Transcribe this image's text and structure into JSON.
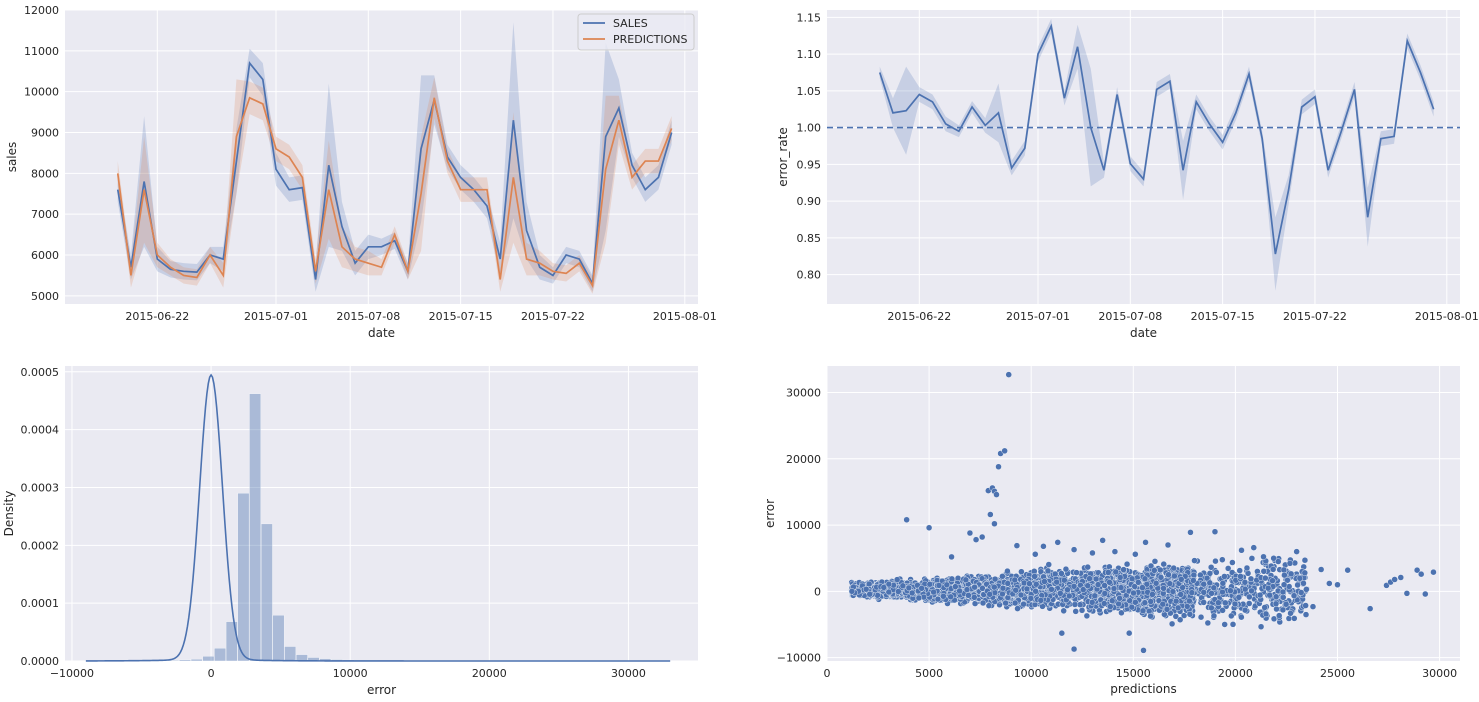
{
  "chart_data": [
    {
      "type": "line",
      "xlabel": "date",
      "ylabel": "sales",
      "ylim": [
        4800,
        12000
      ],
      "yticks": [
        5000,
        6000,
        7000,
        8000,
        9000,
        10000,
        11000,
        12000
      ],
      "xticks": [
        "2015-06-22",
        "2015-07-01",
        "2015-07-08",
        "2015-07-15",
        "2015-07-22",
        "2015-08-01"
      ],
      "x": [
        "2015-06-19",
        "2015-06-20",
        "2015-06-21",
        "2015-06-22",
        "2015-06-23",
        "2015-06-24",
        "2015-06-25",
        "2015-06-26",
        "2015-06-27",
        "2015-06-28",
        "2015-06-29",
        "2015-06-30",
        "2015-07-01",
        "2015-07-02",
        "2015-07-03",
        "2015-07-04",
        "2015-07-05",
        "2015-07-06",
        "2015-07-07",
        "2015-07-08",
        "2015-07-09",
        "2015-07-10",
        "2015-07-11",
        "2015-07-12",
        "2015-07-13",
        "2015-07-14",
        "2015-07-15",
        "2015-07-16",
        "2015-07-17",
        "2015-07-18",
        "2015-07-19",
        "2015-07-20",
        "2015-07-21",
        "2015-07-22",
        "2015-07-23",
        "2015-07-24",
        "2015-07-25",
        "2015-07-26",
        "2015-07-27",
        "2015-07-28",
        "2015-07-29",
        "2015-07-30",
        "2015-07-31"
      ],
      "legend_position": "top-right",
      "grid": true,
      "series": [
        {
          "name": "SALES",
          "color": "#4c72b0",
          "values": [
            7600,
            5700,
            7800,
            5900,
            5650,
            5600,
            5580,
            6000,
            5900,
            8300,
            10700,
            10300,
            8100,
            7600,
            7650,
            5400,
            8200,
            6700,
            5800,
            6200,
            6200,
            6350,
            5600,
            8600,
            9800,
            8400,
            7900,
            7600,
            7200,
            5900,
            9300,
            6600,
            5700,
            5500,
            6000,
            5900,
            5300,
            8900,
            9600,
            8200,
            7600,
            7900,
            9000
          ],
          "band_half_width": [
            300,
            300,
            1600,
            300,
            200,
            200,
            200,
            200,
            300,
            800,
            350,
            400,
            400,
            300,
            300,
            300,
            2000,
            600,
            300,
            300,
            200,
            200,
            200,
            1800,
            600,
            300,
            300,
            300,
            300,
            400,
            2400,
            700,
            300,
            200,
            200,
            200,
            200,
            2300,
            700,
            300,
            300,
            300,
            300
          ]
        },
        {
          "name": "PREDICTIONS",
          "color": "#dd8452",
          "values": [
            8000,
            5500,
            7600,
            6000,
            5700,
            5500,
            5450,
            6000,
            5500,
            8900,
            9850,
            9700,
            8600,
            8400,
            7900,
            5600,
            7600,
            6200,
            5900,
            5800,
            5700,
            6500,
            5600,
            7500,
            9850,
            8300,
            7600,
            7600,
            7600,
            5400,
            7900,
            5900,
            5800,
            5600,
            5550,
            5800,
            5250,
            8100,
            9300,
            7900,
            8300,
            8300,
            9100
          ],
          "band_half_width": [
            300,
            300,
            1300,
            300,
            200,
            200,
            200,
            200,
            300,
            1400,
            400,
            400,
            300,
            300,
            300,
            300,
            1200,
            500,
            300,
            300,
            200,
            200,
            200,
            1400,
            500,
            300,
            300,
            300,
            300,
            300,
            1600,
            400,
            300,
            200,
            200,
            200,
            200,
            1800,
            600,
            300,
            300,
            300,
            300
          ]
        }
      ]
    },
    {
      "type": "line",
      "xlabel": "date",
      "ylabel": "error_rate",
      "ylim": [
        0.76,
        1.16
      ],
      "yticks": [
        0.8,
        0.85,
        0.9,
        0.95,
        1.0,
        1.05,
        1.1,
        1.15
      ],
      "xticks": [
        "2015-06-22",
        "2015-07-01",
        "2015-07-08",
        "2015-07-15",
        "2015-07-22",
        "2015-08-01"
      ],
      "x": [
        "2015-06-19",
        "2015-06-20",
        "2015-06-21",
        "2015-06-22",
        "2015-06-23",
        "2015-06-24",
        "2015-06-25",
        "2015-06-26",
        "2015-06-27",
        "2015-06-28",
        "2015-06-29",
        "2015-06-30",
        "2015-07-01",
        "2015-07-02",
        "2015-07-03",
        "2015-07-04",
        "2015-07-05",
        "2015-07-06",
        "2015-07-07",
        "2015-07-08",
        "2015-07-09",
        "2015-07-10",
        "2015-07-11",
        "2015-07-12",
        "2015-07-13",
        "2015-07-14",
        "2015-07-15",
        "2015-07-16",
        "2015-07-17",
        "2015-07-18",
        "2015-07-19",
        "2015-07-20",
        "2015-07-21",
        "2015-07-22",
        "2015-07-23",
        "2015-07-24",
        "2015-07-25",
        "2015-07-26",
        "2015-07-27",
        "2015-07-28",
        "2015-07-29",
        "2015-07-30",
        "2015-07-31"
      ],
      "reference_line": 1.0,
      "grid": true,
      "series": [
        {
          "color": "#4c72b0",
          "values": [
            1.075,
            1.02,
            1.023,
            1.045,
            1.035,
            1.005,
            0.995,
            1.028,
            1.003,
            1.02,
            0.945,
            0.972,
            1.1,
            1.138,
            1.04,
            1.11,
            1.0,
            0.942,
            1.045,
            0.951,
            0.93,
            1.052,
            1.063,
            0.942,
            1.035,
            1.005,
            0.98,
            1.02,
            1.073,
            0.985,
            0.828,
            0.915,
            1.028,
            1.042,
            0.942,
            0.995,
            1.052,
            0.878,
            0.985,
            0.988,
            1.118,
            1.075,
            1.025
          ],
          "band_half_width": [
            0.008,
            0.02,
            0.06,
            0.01,
            0.01,
            0.01,
            0.008,
            0.008,
            0.01,
            0.04,
            0.01,
            0.01,
            0.01,
            0.01,
            0.01,
            0.03,
            0.08,
            0.01,
            0.01,
            0.01,
            0.01,
            0.01,
            0.01,
            0.04,
            0.01,
            0.01,
            0.01,
            0.01,
            0.01,
            0.01,
            0.05,
            0.02,
            0.01,
            0.01,
            0.01,
            0.01,
            0.01,
            0.04,
            0.01,
            0.01,
            0.01,
            0.01,
            0.01
          ]
        }
      ]
    },
    {
      "type": "histogram",
      "xlabel": "error",
      "ylabel": "Density",
      "xlim": [
        -10500,
        35000
      ],
      "ylim": [
        0,
        0.00051
      ],
      "xticks": [
        -10000,
        0,
        10000,
        20000,
        30000
      ],
      "yticks": [
        0.0,
        0.0001,
        0.0002,
        0.0003,
        0.0004,
        0.0005
      ],
      "ytick_labels": [
        "0.0000",
        "0.0001",
        "0.0002",
        "0.0003",
        "0.0004",
        "0.0005"
      ],
      "bin_width": 840,
      "bin_start": -9000,
      "densities": [
        4e-07,
        4e-07,
        4e-07,
        4e-07,
        4e-07,
        6e-07,
        8e-07,
        1.2e-06,
        2e-06,
        3e-06,
        8e-06,
        2.2e-05,
        6.8e-05,
        0.00029,
        0.000462,
        0.000237,
        7.9e-05,
        2.5e-05,
        1.1e-05,
        6e-06,
        4e-06,
        2.5e-06,
        1.8e-06,
        1.2e-06,
        9e-07,
        6e-07,
        5e-07,
        4e-07,
        4e-07,
        4e-07,
        4e-07,
        4e-07,
        4e-07,
        4e-07,
        4e-07,
        4e-07,
        4e-07,
        4e-07,
        4e-07,
        4e-07,
        4e-07,
        4e-07,
        4e-07,
        4e-07,
        4e-07,
        4e-07,
        4e-07,
        4e-07,
        4e-07,
        4e-07
      ],
      "kde_peak": 0.00049,
      "color": "#4c72b0",
      "grid": true
    },
    {
      "type": "scatter",
      "xlabel": "predictions",
      "ylabel": "error",
      "xlim": [
        0,
        31000
      ],
      "ylim": [
        -10500,
        34000
      ],
      "xticks": [
        0,
        5000,
        10000,
        15000,
        20000,
        25000,
        30000
      ],
      "yticks": [
        -10000,
        0,
        10000,
        20000,
        30000
      ],
      "color": "#4c72b0",
      "grid": true,
      "outliers": [
        [
          3900,
          10800
        ],
        [
          5000,
          9600
        ],
        [
          6100,
          5200
        ],
        [
          7000,
          8800
        ],
        [
          7300,
          7800
        ],
        [
          7600,
          8200
        ],
        [
          7900,
          15200
        ],
        [
          8100,
          15600
        ],
        [
          8200,
          15100
        ],
        [
          8300,
          14600
        ],
        [
          8000,
          11600
        ],
        [
          8200,
          10200
        ],
        [
          8400,
          18800
        ],
        [
          8500,
          20800
        ],
        [
          8700,
          21200
        ],
        [
          8900,
          32700
        ],
        [
          9300,
          6900
        ],
        [
          10200,
          5600
        ],
        [
          10600,
          6800
        ],
        [
          11300,
          7400
        ],
        [
          12100,
          6300
        ],
        [
          13000,
          5800
        ],
        [
          13500,
          7700
        ],
        [
          14100,
          6000
        ],
        [
          15100,
          5600
        ],
        [
          15600,
          7400
        ],
        [
          16700,
          7000
        ],
        [
          17800,
          8900
        ],
        [
          19000,
          9000
        ],
        [
          20300,
          6200
        ],
        [
          20900,
          6600
        ],
        [
          22100,
          4500
        ],
        [
          23000,
          6000
        ],
        [
          23400,
          2800
        ],
        [
          24200,
          3300
        ],
        [
          24600,
          1200
        ],
        [
          25000,
          1000
        ],
        [
          25500,
          3200
        ],
        [
          26600,
          -2600
        ],
        [
          27400,
          900
        ],
        [
          27600,
          1400
        ],
        [
          27800,
          1800
        ],
        [
          28100,
          2100
        ],
        [
          28400,
          -300
        ],
        [
          28900,
          3200
        ],
        [
          29100,
          2600
        ],
        [
          29300,
          -400
        ],
        [
          29700,
          2900
        ],
        [
          11500,
          -6300
        ],
        [
          12100,
          -8700
        ],
        [
          14800,
          -6300
        ],
        [
          15500,
          -8900
        ],
        [
          16900,
          -4900
        ],
        [
          19800,
          -3700
        ],
        [
          21500,
          -3400
        ],
        [
          22700,
          -3300
        ],
        [
          23800,
          -2300
        ]
      ]
    }
  ]
}
